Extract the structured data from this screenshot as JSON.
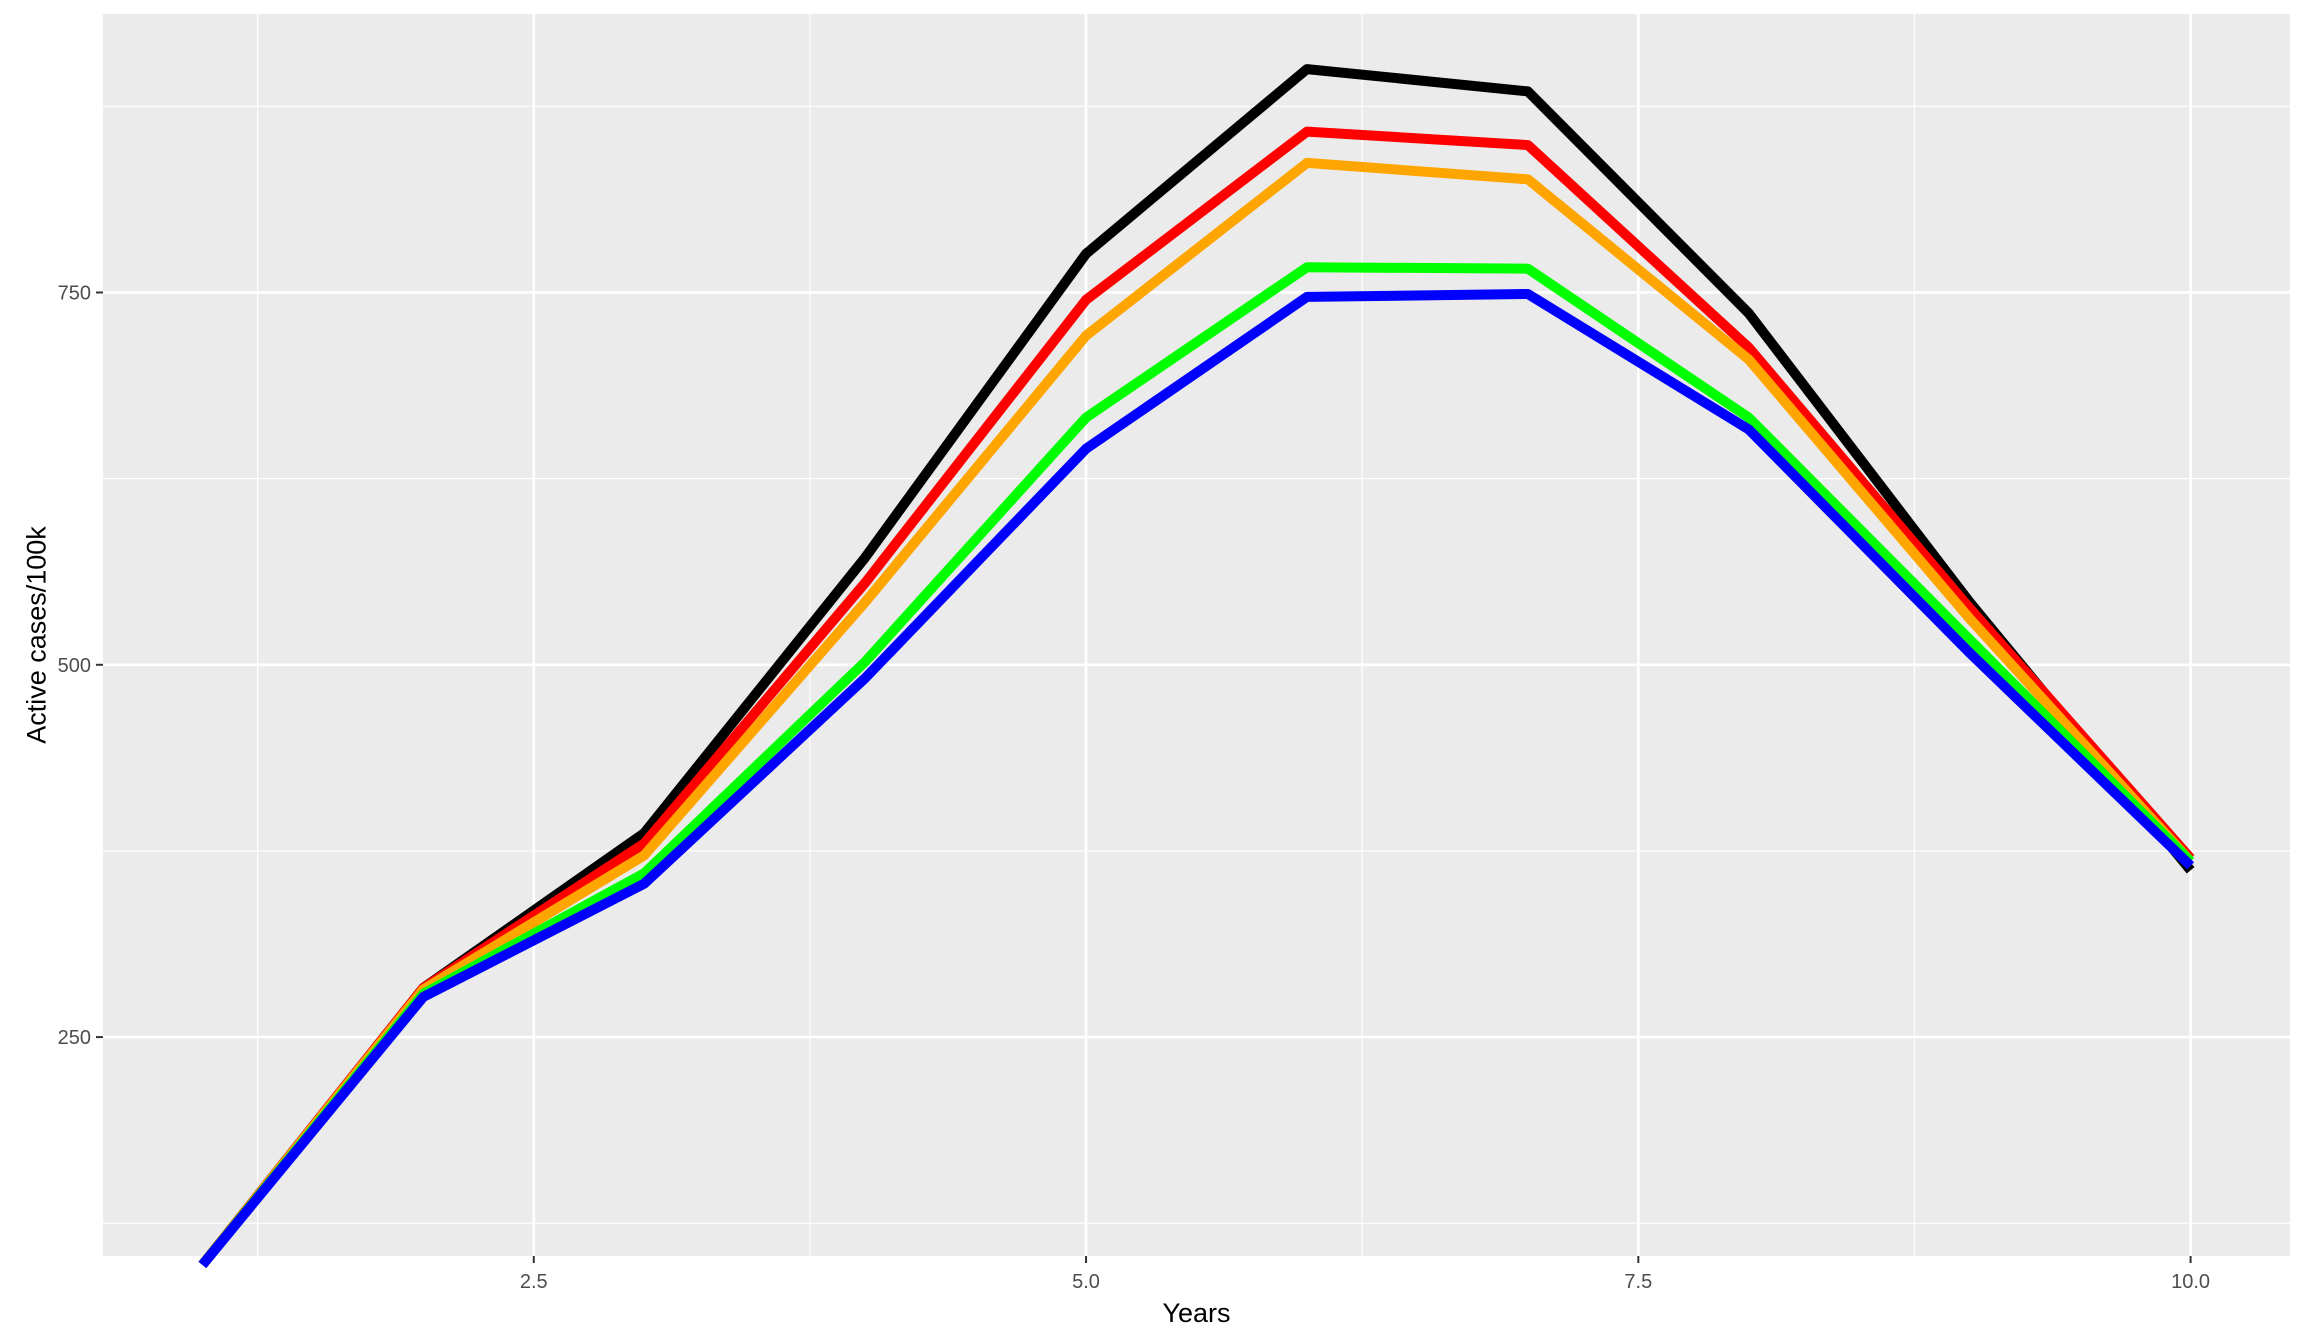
{
  "chart_data": {
    "type": "line",
    "title": "",
    "xlabel": "Years",
    "ylabel": "Active cases/100k",
    "x": [
      1,
      2,
      3,
      4,
      5,
      6,
      7,
      8,
      9,
      10
    ],
    "xlim": [
      0.55,
      10.45
    ],
    "ylim": [
      103,
      937
    ],
    "x_ticks": [
      2.5,
      5.0,
      7.5,
      10.0
    ],
    "x_tick_labels": [
      "2.5",
      "5.0",
      "7.5",
      "10.0"
    ],
    "y_ticks": [
      250,
      500,
      750
    ],
    "y_tick_labels": [
      "250",
      "500",
      "750"
    ],
    "grid": true,
    "legend": "none",
    "series": [
      {
        "color": "#000000",
        "values": [
          97,
          283,
          387,
          572,
          776,
          900,
          885,
          736,
          542,
          362
        ]
      },
      {
        "color": "#FF0000",
        "values": [
          97,
          283,
          380,
          555,
          745,
          858,
          849,
          713,
          538,
          370
        ]
      },
      {
        "color": "#FFA500",
        "values": [
          97,
          282,
          372,
          542,
          721,
          837,
          826,
          705,
          531,
          368
        ]
      },
      {
        "color": "#00FF00",
        "values": [
          97,
          279,
          360,
          502,
          666,
          767,
          766,
          666,
          517,
          368
        ]
      },
      {
        "color": "#0000FF",
        "values": [
          97,
          277,
          353,
          491,
          645,
          747,
          749,
          658,
          508,
          365
        ]
      }
    ]
  }
}
